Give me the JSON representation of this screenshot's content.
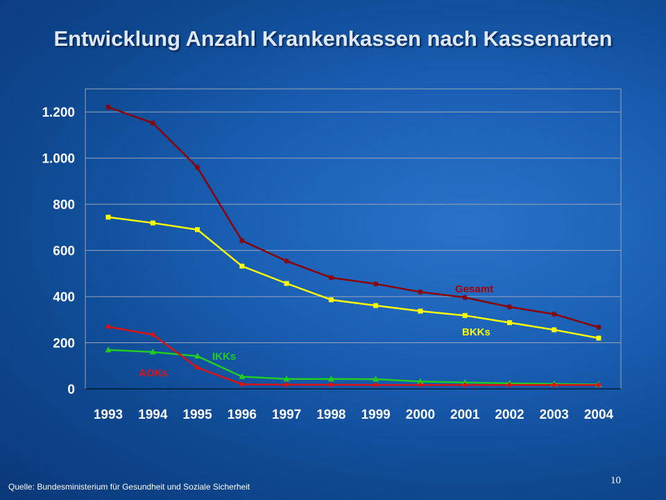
{
  "title": "Entwicklung Anzahl Krankenkassen nach Kassenarten",
  "source": "Quelle: Bundesministerium für Gesundheit und Soziale Sicherheit",
  "page_number": "10",
  "chart_data": {
    "type": "line",
    "title": "Entwicklung Anzahl Krankenkassen nach Kassenarten",
    "xlabel": "",
    "ylabel": "",
    "categories": [
      "1993",
      "1994",
      "1995",
      "1996",
      "1997",
      "1998",
      "1999",
      "2000",
      "2001",
      "2002",
      "2003",
      "2004"
    ],
    "ylim": [
      0,
      1300
    ],
    "yticks": [
      0,
      200,
      400,
      600,
      800,
      1000,
      1200
    ],
    "ytick_labels": [
      "0",
      "200",
      "400",
      "600",
      "800",
      "1.000",
      "1.200"
    ],
    "grid": true,
    "series": [
      {
        "name": "Gesamt",
        "color": "#8b0000",
        "marker": "star",
        "values": [
          1221,
          1152,
          960,
          642,
          554,
          482,
          455,
          420,
          396,
          355,
          324,
          267
        ]
      },
      {
        "name": "BKKs",
        "color": "#ffff00",
        "marker": "square",
        "values": [
          744,
          719,
          690,
          532,
          457,
          386,
          361,
          337,
          318,
          287,
          256,
          220
        ]
      },
      {
        "name": "IKKs",
        "color": "#22cc22",
        "marker": "triangle",
        "values": [
          169,
          160,
          142,
          53,
          43,
          43,
          42,
          32,
          28,
          24,
          22,
          19
        ]
      },
      {
        "name": "AOKs",
        "color": "#dd1111",
        "marker": "diamond",
        "values": [
          269,
          235,
          92,
          20,
          18,
          18,
          17,
          17,
          17,
          17,
          17,
          17
        ]
      }
    ]
  }
}
